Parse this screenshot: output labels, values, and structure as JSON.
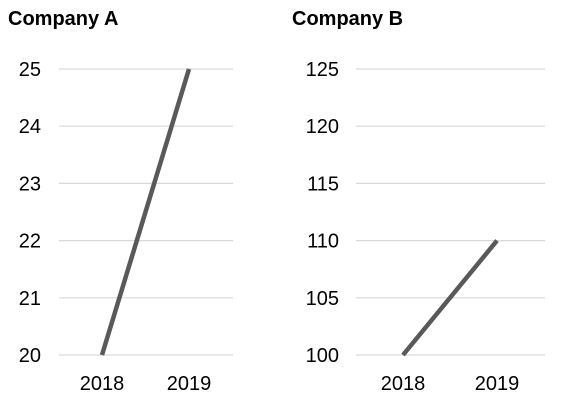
{
  "chart_data": [
    {
      "type": "line",
      "title": "Company A",
      "categories": [
        "2018",
        "2019"
      ],
      "series": [
        {
          "values": [
            20,
            25
          ]
        }
      ],
      "ylim": [
        20,
        25
      ],
      "yticks": [
        20,
        21,
        22,
        23,
        24,
        25
      ],
      "grid": true,
      "color": "#595959"
    },
    {
      "type": "line",
      "title": "Company B",
      "categories": [
        "2018",
        "2019"
      ],
      "series": [
        {
          "values": [
            100,
            110
          ]
        }
      ],
      "ylim": [
        100,
        125
      ],
      "yticks": [
        100,
        105,
        110,
        115,
        120,
        125
      ],
      "grid": true,
      "color": "#595959"
    }
  ]
}
